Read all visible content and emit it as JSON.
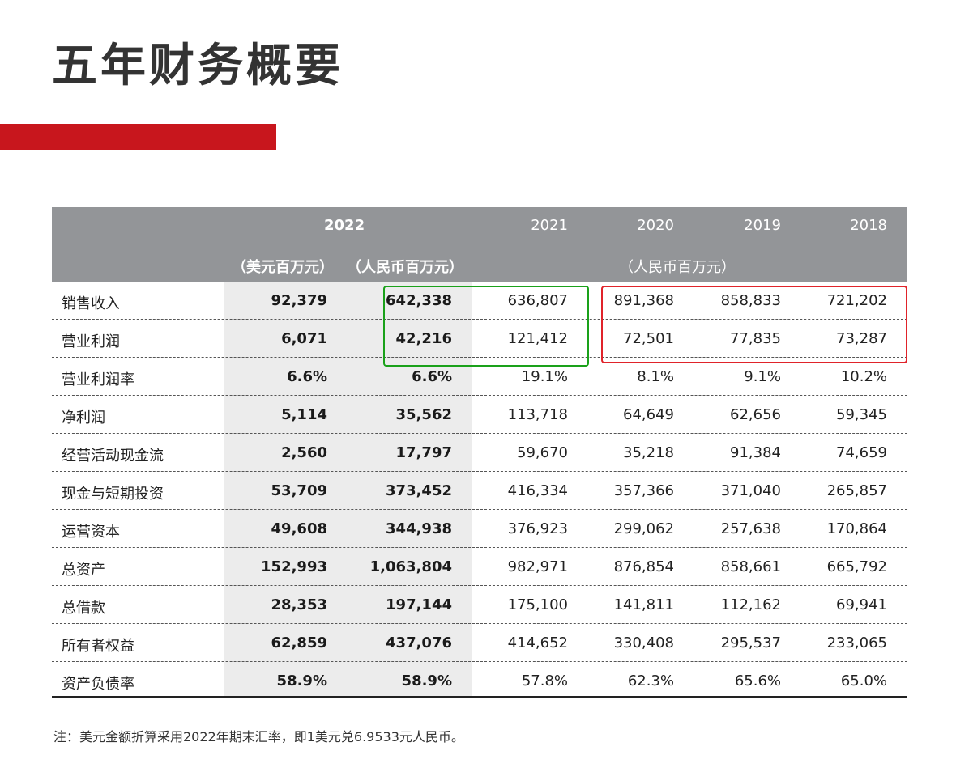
{
  "title": "五年财务概要",
  "colors": {
    "accent": "#c8161d",
    "header_bg": "#939598",
    "highlight_green": "#1aa11a",
    "highlight_red": "#e0232a"
  },
  "header": {
    "year_2022": "2022",
    "years_other": [
      "2021",
      "2020",
      "2019",
      "2018"
    ],
    "unit_usd": "（美元百万元）",
    "unit_rmb_2022": "（人民币百万元）",
    "unit_rmb_other": "（人民币百万元）"
  },
  "rows": [
    {
      "label": "销售收入",
      "values": [
        "92,379",
        "642,338",
        "636,807",
        "891,368",
        "858,833",
        "721,202"
      ]
    },
    {
      "label": "营业利润",
      "values": [
        "6,071",
        "42,216",
        "121,412",
        "72,501",
        "77,835",
        "73,287"
      ]
    },
    {
      "label": "营业利润率",
      "values": [
        "6.6%",
        "6.6%",
        "19.1%",
        "8.1%",
        "9.1%",
        "10.2%"
      ]
    },
    {
      "label": "净利润",
      "values": [
        "5,114",
        "35,562",
        "113,718",
        "64,649",
        "62,656",
        "59,345"
      ]
    },
    {
      "label": "经营活动现金流",
      "values": [
        "2,560",
        "17,797",
        "59,670",
        "35,218",
        "91,384",
        "74,659"
      ]
    },
    {
      "label": "现金与短期投资",
      "values": [
        "53,709",
        "373,452",
        "416,334",
        "357,366",
        "371,040",
        "265,857"
      ]
    },
    {
      "label": "运营资本",
      "values": [
        "49,608",
        "344,938",
        "376,923",
        "299,062",
        "257,638",
        "170,864"
      ]
    },
    {
      "label": "总资产",
      "values": [
        "152,993",
        "1,063,804",
        "982,971",
        "876,854",
        "858,661",
        "665,792"
      ]
    },
    {
      "label": "总借款",
      "values": [
        "28,353",
        "197,144",
        "175,100",
        "141,811",
        "112,162",
        "69,941"
      ]
    },
    {
      "label": "所有者权益",
      "values": [
        "62,859",
        "437,076",
        "414,652",
        "330,408",
        "295,537",
        "233,065"
      ]
    },
    {
      "label": "资产负债率",
      "values": [
        "58.9%",
        "58.9%",
        "57.8%",
        "62.3%",
        "65.6%",
        "65.0%"
      ]
    }
  ],
  "footnote": "注：美元金额折算采用2022年期末汇率，即1美元兑6.9533元人民币。"
}
